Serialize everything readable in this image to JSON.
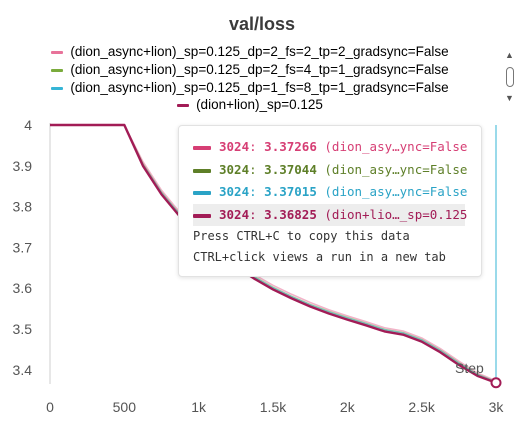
{
  "panel": {
    "title": "val/loss"
  },
  "legend": [
    {
      "label": "(dion_async+lion)_sp=0.125_dp=2_fs=2_tp=2_gradsync=False",
      "color": "#e8739a"
    },
    {
      "label": "(dion_async+lion)_sp=0.125_dp=2_fs=4_tp=1_gradsync=False",
      "color": "#7aab3c"
    },
    {
      "label": "(dion_async+lion)_sp=0.125_dp=1_fs=8_tp=1_gradsync=False",
      "color": "#36b5d6"
    },
    {
      "label": "(dion+lion)_sp=0.125",
      "color": "#a21c56"
    }
  ],
  "tooltip": {
    "rows": [
      {
        "step": "3024",
        "value": "3.37266",
        "name": "(dion_asy…ync=False",
        "color": "#d63e74",
        "text_color": "#d63e74"
      },
      {
        "step": "3024",
        "value": "3.37044",
        "name": "(dion_asy…ync=False",
        "color": "#5e7f28",
        "text_color": "#5e7f28"
      },
      {
        "step": "3024",
        "value": "3.37015",
        "name": "(dion_asy…ync=False",
        "color": "#2aa3c6",
        "text_color": "#2aa3c6"
      },
      {
        "step": "3024",
        "value": "3.36825",
        "name": "(dion+lio…_sp=0.125",
        "color": "#a21c56",
        "text_color": "#a21c56"
      }
    ],
    "note1": "Press CTRL+C to copy this data",
    "note2": "CTRL+click views a run in a new tab"
  },
  "axis": {
    "step_label": "Step"
  },
  "chart_data": {
    "type": "line",
    "xlim": [
      0,
      3000
    ],
    "ylim": [
      3.37,
      4.0
    ],
    "x_ticks": [
      "0",
      "500",
      "1k",
      "1.5k",
      "2k",
      "2.5k",
      "3k"
    ],
    "x_tick_values": [
      0,
      500,
      1000,
      1500,
      2000,
      2500,
      3000
    ],
    "y_ticks": [
      "4",
      "3.9",
      "3.8",
      "3.7",
      "3.6",
      "3.5",
      "3.4"
    ],
    "y_tick_values": [
      4.0,
      3.9,
      3.8,
      3.7,
      3.6,
      3.5,
      3.4
    ],
    "cursor_step": 3024,
    "series": [
      {
        "name": "(dion_async+lion)_sp=0.125_dp=2_fs=2_tp=2_gradsync=False",
        "color": "#e8739a",
        "x": [
          0,
          500,
          625,
          750,
          875,
          1000,
          1125,
          1250,
          1375,
          1500,
          1625,
          1750,
          1875,
          2000,
          2125,
          2250,
          2375,
          2500,
          2625,
          2750,
          2875,
          3024
        ],
        "y": [
          4.0,
          4.0,
          3.91,
          3.84,
          3.785,
          3.738,
          3.698,
          3.663,
          3.633,
          3.607,
          3.585,
          3.565,
          3.547,
          3.532,
          3.518,
          3.503,
          3.495,
          3.478,
          3.452,
          3.421,
          3.392,
          3.37266
        ]
      },
      {
        "name": "(dion_async+lion)_sp=0.125_dp=2_fs=4_tp=1_gradsync=False",
        "color": "#7aab3c",
        "x": [
          0,
          500,
          625,
          750,
          875,
          1000,
          1125,
          1250,
          1375,
          1500,
          1625,
          1750,
          1875,
          2000,
          2125,
          2250,
          2375,
          2500,
          2625,
          2750,
          2875,
          3024
        ],
        "y": [
          4.0,
          4.0,
          3.905,
          3.835,
          3.78,
          3.733,
          3.693,
          3.658,
          3.628,
          3.602,
          3.58,
          3.56,
          3.543,
          3.528,
          3.514,
          3.499,
          3.491,
          3.474,
          3.448,
          3.417,
          3.389,
          3.37044
        ]
      },
      {
        "name": "(dion_async+lion)_sp=0.125_dp=1_fs=8_tp=1_gradsync=False",
        "color": "#36b5d6",
        "x": [
          0,
          500,
          625,
          750,
          875,
          1000,
          1125,
          1250,
          1375,
          1500,
          1625,
          1750,
          1875,
          2000,
          2125,
          2250,
          2375,
          2500,
          2625,
          2750,
          2875,
          3024
        ],
        "y": [
          4.0,
          4.0,
          3.903,
          3.834,
          3.779,
          3.732,
          3.692,
          3.657,
          3.627,
          3.601,
          3.579,
          3.559,
          3.542,
          3.527,
          3.513,
          3.498,
          3.49,
          3.473,
          3.447,
          3.416,
          3.388,
          3.37015
        ]
      },
      {
        "name": "(dion+lion)_sp=0.125",
        "color": "#a21c56",
        "x": [
          0,
          500,
          625,
          750,
          875,
          1000,
          1125,
          1250,
          1375,
          1500,
          1625,
          1750,
          1875,
          2000,
          2125,
          2250,
          2375,
          2500,
          2625,
          2750,
          2875,
          3024
        ],
        "y": [
          4.0,
          4.0,
          3.9,
          3.83,
          3.775,
          3.728,
          3.688,
          3.653,
          3.623,
          3.597,
          3.575,
          3.555,
          3.538,
          3.523,
          3.509,
          3.494,
          3.486,
          3.469,
          3.443,
          3.412,
          3.385,
          3.36825
        ]
      }
    ]
  }
}
